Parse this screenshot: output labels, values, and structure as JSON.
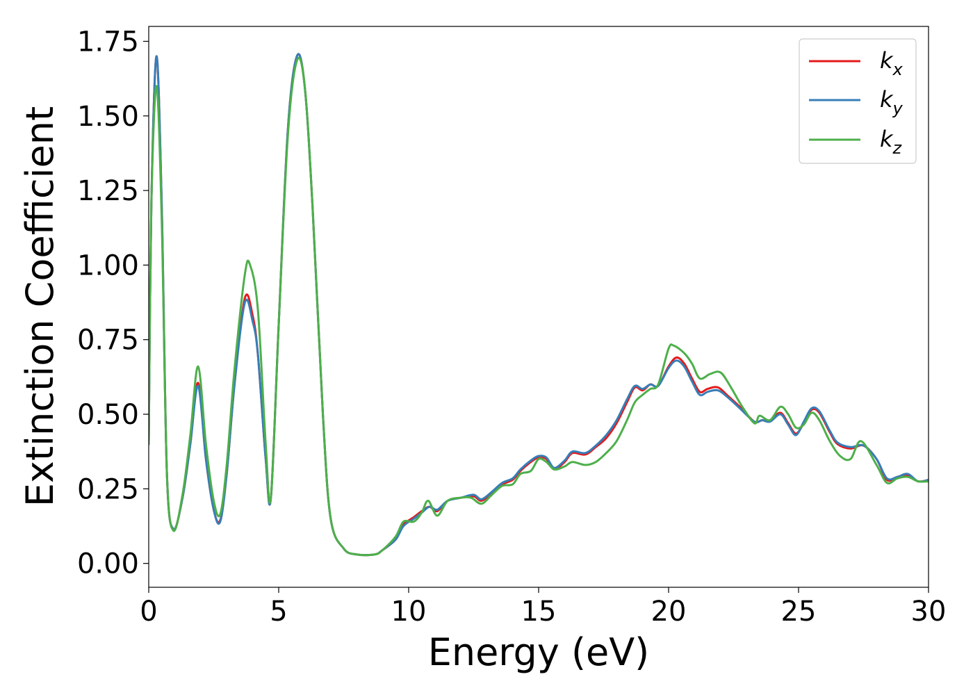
{
  "chart_data": {
    "type": "line",
    "title": "",
    "xlabel": "Energy (eV)",
    "ylabel": "Extinction Coefficient",
    "xlim": [
      0,
      30
    ],
    "ylim": [
      -0.08,
      1.8
    ],
    "xticks": [
      "0",
      "5",
      "10",
      "15",
      "20",
      "25",
      "30"
    ],
    "yticks": [
      "0.00",
      "0.25",
      "0.50",
      "0.75",
      "1.00",
      "1.25",
      "1.50",
      "1.75"
    ],
    "grid": false,
    "legend_position": "top-right",
    "series": [
      {
        "name": "kx",
        "legend_base": "k",
        "legend_sub": "x",
        "color": "#e41a1c",
        "points": [
          [
            0,
            0.4
          ],
          [
            0.1,
            1.2
          ],
          [
            0.3,
            1.7
          ],
          [
            0.5,
            1.2
          ],
          [
            0.7,
            0.3
          ],
          [
            0.95,
            0.115
          ],
          [
            1.3,
            0.22
          ],
          [
            1.6,
            0.4
          ],
          [
            1.9,
            0.605
          ],
          [
            2.2,
            0.35
          ],
          [
            2.5,
            0.18
          ],
          [
            2.75,
            0.145
          ],
          [
            3.0,
            0.3
          ],
          [
            3.3,
            0.6
          ],
          [
            3.7,
            0.89
          ],
          [
            4.0,
            0.83
          ],
          [
            4.2,
            0.7
          ],
          [
            4.5,
            0.35
          ],
          [
            4.7,
            0.22
          ],
          [
            5.0,
            0.8
          ],
          [
            5.35,
            1.45
          ],
          [
            5.7,
            1.7
          ],
          [
            6.0,
            1.6
          ],
          [
            6.3,
            1.2
          ],
          [
            6.7,
            0.5
          ],
          [
            7.0,
            0.15
          ],
          [
            7.5,
            0.05
          ],
          [
            8.0,
            0.03
          ],
          [
            8.7,
            0.03
          ],
          [
            9.0,
            0.045
          ],
          [
            9.5,
            0.08
          ],
          [
            9.8,
            0.13
          ],
          [
            10.2,
            0.155
          ],
          [
            10.5,
            0.175
          ],
          [
            10.8,
            0.19
          ],
          [
            11.1,
            0.175
          ],
          [
            11.5,
            0.21
          ],
          [
            12.0,
            0.22
          ],
          [
            12.5,
            0.225
          ],
          [
            12.8,
            0.21
          ],
          [
            13.2,
            0.235
          ],
          [
            13.6,
            0.265
          ],
          [
            14.0,
            0.28
          ],
          [
            14.3,
            0.31
          ],
          [
            14.7,
            0.34
          ],
          [
            15.0,
            0.355
          ],
          [
            15.3,
            0.35
          ],
          [
            15.6,
            0.315
          ],
          [
            16.0,
            0.34
          ],
          [
            16.3,
            0.37
          ],
          [
            16.8,
            0.365
          ],
          [
            17.2,
            0.39
          ],
          [
            17.6,
            0.42
          ],
          [
            18.0,
            0.47
          ],
          [
            18.4,
            0.54
          ],
          [
            18.7,
            0.59
          ],
          [
            19.0,
            0.58
          ],
          [
            19.3,
            0.6
          ],
          [
            19.6,
            0.595
          ],
          [
            20.0,
            0.66
          ],
          [
            20.3,
            0.69
          ],
          [
            20.6,
            0.67
          ],
          [
            20.9,
            0.62
          ],
          [
            21.2,
            0.575
          ],
          [
            21.5,
            0.585
          ],
          [
            21.9,
            0.59
          ],
          [
            22.3,
            0.56
          ],
          [
            22.8,
            0.52
          ],
          [
            23.3,
            0.475
          ],
          [
            23.6,
            0.48
          ],
          [
            23.9,
            0.48
          ],
          [
            24.3,
            0.505
          ],
          [
            24.6,
            0.47
          ],
          [
            24.9,
            0.435
          ],
          [
            25.2,
            0.47
          ],
          [
            25.5,
            0.515
          ],
          [
            25.8,
            0.505
          ],
          [
            26.2,
            0.44
          ],
          [
            26.5,
            0.4
          ],
          [
            27.0,
            0.385
          ],
          [
            27.5,
            0.395
          ],
          [
            28.0,
            0.35
          ],
          [
            28.4,
            0.28
          ],
          [
            28.8,
            0.29
          ],
          [
            29.2,
            0.295
          ],
          [
            29.6,
            0.275
          ],
          [
            30.0,
            0.28
          ]
        ]
      },
      {
        "name": "ky",
        "legend_base": "k",
        "legend_sub": "y",
        "color": "#377eb8",
        "points": [
          [
            0,
            0.4
          ],
          [
            0.1,
            1.2
          ],
          [
            0.3,
            1.7
          ],
          [
            0.5,
            1.2
          ],
          [
            0.7,
            0.3
          ],
          [
            0.95,
            0.115
          ],
          [
            1.3,
            0.22
          ],
          [
            1.6,
            0.4
          ],
          [
            1.9,
            0.595
          ],
          [
            2.2,
            0.35
          ],
          [
            2.5,
            0.18
          ],
          [
            2.75,
            0.14
          ],
          [
            3.0,
            0.3
          ],
          [
            3.3,
            0.6
          ],
          [
            3.7,
            0.875
          ],
          [
            4.0,
            0.81
          ],
          [
            4.2,
            0.7
          ],
          [
            4.5,
            0.35
          ],
          [
            4.7,
            0.22
          ],
          [
            5.0,
            0.8
          ],
          [
            5.35,
            1.45
          ],
          [
            5.7,
            1.7
          ],
          [
            6.0,
            1.6
          ],
          [
            6.3,
            1.2
          ],
          [
            6.7,
            0.5
          ],
          [
            7.0,
            0.15
          ],
          [
            7.5,
            0.05
          ],
          [
            8.0,
            0.03
          ],
          [
            8.7,
            0.03
          ],
          [
            9.0,
            0.045
          ],
          [
            9.5,
            0.08
          ],
          [
            9.8,
            0.125
          ],
          [
            10.2,
            0.15
          ],
          [
            10.5,
            0.17
          ],
          [
            10.8,
            0.19
          ],
          [
            11.1,
            0.18
          ],
          [
            11.5,
            0.21
          ],
          [
            12.0,
            0.22
          ],
          [
            12.5,
            0.23
          ],
          [
            12.8,
            0.215
          ],
          [
            13.2,
            0.24
          ],
          [
            13.6,
            0.27
          ],
          [
            14.0,
            0.285
          ],
          [
            14.3,
            0.315
          ],
          [
            14.7,
            0.345
          ],
          [
            15.0,
            0.36
          ],
          [
            15.3,
            0.355
          ],
          [
            15.6,
            0.32
          ],
          [
            16.0,
            0.345
          ],
          [
            16.3,
            0.375
          ],
          [
            16.8,
            0.37
          ],
          [
            17.2,
            0.395
          ],
          [
            17.6,
            0.43
          ],
          [
            18.0,
            0.48
          ],
          [
            18.4,
            0.55
          ],
          [
            18.7,
            0.595
          ],
          [
            19.0,
            0.585
          ],
          [
            19.3,
            0.6
          ],
          [
            19.6,
            0.595
          ],
          [
            20.0,
            0.655
          ],
          [
            20.3,
            0.68
          ],
          [
            20.6,
            0.66
          ],
          [
            20.9,
            0.61
          ],
          [
            21.2,
            0.565
          ],
          [
            21.5,
            0.575
          ],
          [
            21.9,
            0.58
          ],
          [
            22.3,
            0.555
          ],
          [
            22.8,
            0.515
          ],
          [
            23.3,
            0.475
          ],
          [
            23.6,
            0.48
          ],
          [
            23.9,
            0.475
          ],
          [
            24.3,
            0.5
          ],
          [
            24.6,
            0.465
          ],
          [
            24.9,
            0.43
          ],
          [
            25.2,
            0.475
          ],
          [
            25.5,
            0.52
          ],
          [
            25.8,
            0.51
          ],
          [
            26.2,
            0.445
          ],
          [
            26.5,
            0.405
          ],
          [
            27.0,
            0.39
          ],
          [
            27.5,
            0.395
          ],
          [
            28.0,
            0.35
          ],
          [
            28.4,
            0.285
          ],
          [
            28.8,
            0.29
          ],
          [
            29.2,
            0.3
          ],
          [
            29.6,
            0.275
          ],
          [
            30.0,
            0.28
          ]
        ]
      },
      {
        "name": "kz",
        "legend_base": "k",
        "legend_sub": "z",
        "color": "#4daf4a",
        "points": [
          [
            0,
            0.4
          ],
          [
            0.1,
            1.2
          ],
          [
            0.3,
            1.6
          ],
          [
            0.5,
            1.15
          ],
          [
            0.7,
            0.3
          ],
          [
            0.95,
            0.11
          ],
          [
            1.3,
            0.23
          ],
          [
            1.6,
            0.43
          ],
          [
            1.9,
            0.66
          ],
          [
            2.2,
            0.4
          ],
          [
            2.5,
            0.21
          ],
          [
            2.75,
            0.165
          ],
          [
            3.0,
            0.33
          ],
          [
            3.3,
            0.65
          ],
          [
            3.7,
            0.97
          ],
          [
            3.9,
            1.0
          ],
          [
            4.2,
            0.85
          ],
          [
            4.5,
            0.4
          ],
          [
            4.7,
            0.22
          ],
          [
            5.0,
            0.8
          ],
          [
            5.35,
            1.43
          ],
          [
            5.7,
            1.685
          ],
          [
            6.0,
            1.6
          ],
          [
            6.3,
            1.2
          ],
          [
            6.7,
            0.5
          ],
          [
            7.0,
            0.15
          ],
          [
            7.5,
            0.05
          ],
          [
            8.0,
            0.03
          ],
          [
            8.7,
            0.03
          ],
          [
            9.0,
            0.045
          ],
          [
            9.5,
            0.09
          ],
          [
            9.8,
            0.14
          ],
          [
            10.2,
            0.14
          ],
          [
            10.5,
            0.17
          ],
          [
            10.75,
            0.21
          ],
          [
            11.1,
            0.16
          ],
          [
            11.5,
            0.21
          ],
          [
            12.0,
            0.22
          ],
          [
            12.4,
            0.22
          ],
          [
            12.8,
            0.2
          ],
          [
            13.2,
            0.23
          ],
          [
            13.6,
            0.26
          ],
          [
            14.0,
            0.265
          ],
          [
            14.3,
            0.3
          ],
          [
            14.7,
            0.31
          ],
          [
            15.0,
            0.35
          ],
          [
            15.3,
            0.34
          ],
          [
            15.6,
            0.315
          ],
          [
            16.0,
            0.325
          ],
          [
            16.3,
            0.34
          ],
          [
            16.8,
            0.33
          ],
          [
            17.2,
            0.34
          ],
          [
            17.6,
            0.37
          ],
          [
            18.0,
            0.41
          ],
          [
            18.4,
            0.48
          ],
          [
            18.7,
            0.54
          ],
          [
            19.0,
            0.565
          ],
          [
            19.3,
            0.585
          ],
          [
            19.6,
            0.6
          ],
          [
            20.0,
            0.72
          ],
          [
            20.2,
            0.73
          ],
          [
            20.6,
            0.705
          ],
          [
            20.9,
            0.67
          ],
          [
            21.2,
            0.62
          ],
          [
            21.6,
            0.635
          ],
          [
            22.0,
            0.64
          ],
          [
            22.4,
            0.59
          ],
          [
            22.8,
            0.53
          ],
          [
            23.3,
            0.47
          ],
          [
            23.5,
            0.495
          ],
          [
            23.9,
            0.48
          ],
          [
            24.3,
            0.525
          ],
          [
            24.6,
            0.5
          ],
          [
            24.9,
            0.455
          ],
          [
            25.2,
            0.465
          ],
          [
            25.5,
            0.505
          ],
          [
            25.8,
            0.48
          ],
          [
            26.2,
            0.41
          ],
          [
            26.6,
            0.36
          ],
          [
            27.0,
            0.35
          ],
          [
            27.4,
            0.41
          ],
          [
            28.0,
            0.33
          ],
          [
            28.4,
            0.27
          ],
          [
            28.8,
            0.285
          ],
          [
            29.2,
            0.29
          ],
          [
            29.6,
            0.275
          ],
          [
            30.0,
            0.275
          ]
        ]
      }
    ]
  }
}
